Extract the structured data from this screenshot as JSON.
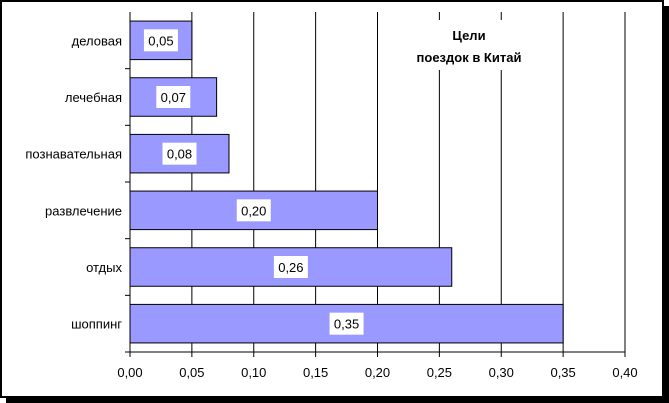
{
  "chart_data": {
    "type": "bar",
    "orientation": "horizontal",
    "title_lines": [
      "Цели",
      "поездок в Китай"
    ],
    "categories": [
      "деловая",
      "лечебная",
      "познавательная",
      "развлечение",
      "отдых",
      "шоппинг"
    ],
    "values": [
      0.05,
      0.07,
      0.08,
      0.2,
      0.26,
      0.35
    ],
    "value_labels": [
      "0,05",
      "0,07",
      "0,08",
      "0,20",
      "0,26",
      "0,35"
    ],
    "xticks": [
      "0,00",
      "0,05",
      "0,10",
      "0,15",
      "0,20",
      "0,25",
      "0,30",
      "0,35",
      "0,40"
    ],
    "xlim": [
      0,
      0.4
    ],
    "grid": "vertical",
    "bar_color": "#9999ff",
    "xlabel": "",
    "ylabel": ""
  }
}
